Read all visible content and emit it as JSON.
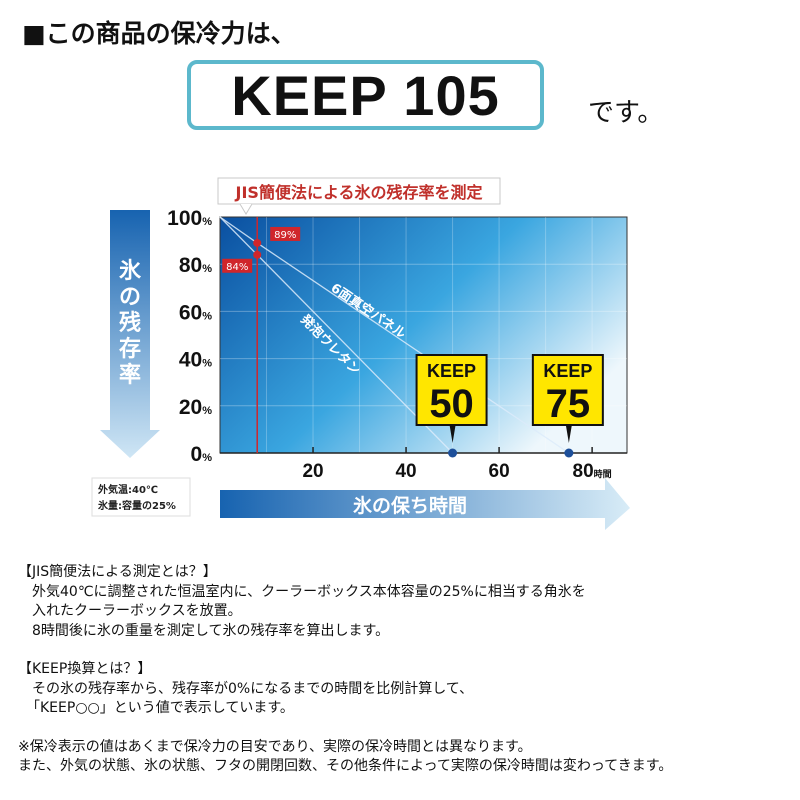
{
  "header": {
    "heading": "■この商品の保冷力は、",
    "keep_value": "KEEP 105",
    "suffix": "です。"
  },
  "chart_data": {
    "type": "line",
    "title": "JIS簡便法による氷の残存率を測定",
    "ylabel": "氷の残存率",
    "xlabel": "氷の保ち時間",
    "x_unit": "時間",
    "y_unit": "%",
    "xlim": [
      0,
      87.5
    ],
    "ylim": [
      0,
      100
    ],
    "x_ticks": [
      20,
      40,
      60,
      80
    ],
    "y_ticks": [
      0,
      20,
      40,
      60,
      80,
      100
    ],
    "grid": true,
    "measurement_time": 8,
    "series": [
      {
        "name": "6面真空パネル",
        "points": [
          [
            0,
            100
          ],
          [
            8,
            89
          ],
          [
            75,
            0
          ]
        ],
        "label": "89%",
        "badge": [
          "KEEP",
          "75"
        ]
      },
      {
        "name": "発泡ウレタン",
        "points": [
          [
            0,
            100
          ],
          [
            8,
            84
          ],
          [
            50,
            0
          ]
        ],
        "label": "84%",
        "badge": [
          "KEEP",
          "50"
        ]
      }
    ],
    "conditions": [
      "外気温:40℃",
      "氷量:容量の25%"
    ],
    "colors": {
      "background_dark": "#0a4fa0",
      "background_light": "#e8f4fb",
      "marker": "#d0262b",
      "badge": "#ffe600",
      "endpoint": "#1d4f9a"
    }
  },
  "notes": {
    "jis_title": "【JIS簡便法による測定とは？】",
    "jis_lines": [
      "外気40℃に調整された恒温室内に、クーラーボックス本体容量の25%に相当する角氷を",
      "入れたクーラーボックスを放置。",
      "8時間後に氷の重量を測定して氷の残存率を算出します。"
    ],
    "keep_title": "【KEEP換算とは？】",
    "keep_lines": [
      "その氷の残存率から、残存率が0%になるまでの時間を比例計算して、",
      "「KEEP○○」という値で表示しています。"
    ],
    "disclaimer": [
      "※保冷表示の値はあくまで保冷力の目安であり、実際の保冷時間とは異なります。",
      "また、外気の状態、氷の状態、フタの開閉回数、その他条件によって実際の保冷時間は変わってきます。"
    ]
  }
}
